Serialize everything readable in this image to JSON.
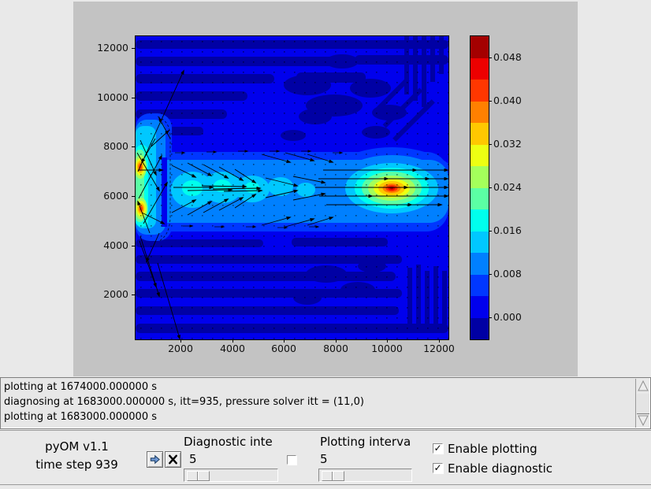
{
  "app": {
    "title": "pyOM v1.1",
    "time_step": "time step 939"
  },
  "log": {
    "lines": [
      "plotting at 1674000.000000 s",
      "diagnosing at 1683000.000000 s, itt=935, pressure solver itt = (11,0)",
      "plotting at 1683000.000000 s"
    ]
  },
  "controls": {
    "icons": {
      "run_button": "arrow-right-icon",
      "stop_button": "x-icon",
      "scroll_up": "triangle-up-icon",
      "scroll_down": "triangle-down-icon"
    },
    "diagnostic_interval": {
      "label": "Diagnostic inte",
      "value": "5"
    },
    "plotting_interval": {
      "label": "Plotting interva",
      "value": "5"
    },
    "unlabeled_checkbox": {
      "checked": false
    },
    "enable_plotting": {
      "label": "Enable plotting",
      "checked": true,
      "check_glyph": "✓"
    },
    "enable_diagnostic": {
      "label": "Enable diagnostic",
      "checked": true,
      "check_glyph": "✓"
    }
  },
  "chart_data": {
    "type": "heatmap",
    "title": "",
    "xlabel": "",
    "ylabel": "",
    "xticks": [
      "2000",
      "4000",
      "6000",
      "8000",
      "10000",
      "12000"
    ],
    "yticks": [
      "2000",
      "4000",
      "6000",
      "8000",
      "10000",
      "12000"
    ],
    "xlim": [
      330,
      12360
    ],
    "ylim": [
      220,
      12430
    ],
    "grid": false,
    "colorbar": {
      "tick_labels": [
        "0.048",
        "0.040",
        "0.032",
        "0.024",
        "0.016",
        "0.008",
        "0.000"
      ],
      "levels": [
        -0.004,
        0.0,
        0.004,
        0.008,
        0.012,
        0.016,
        0.02,
        0.024,
        0.028,
        0.032,
        0.036,
        0.04,
        0.044,
        0.048,
        0.052
      ],
      "colors": [
        "#0000A4",
        "#0000ED",
        "#0037FF",
        "#0080FF",
        "#00C8FF",
        "#00FFED",
        "#5BFFA4",
        "#A4FF5B",
        "#EDFF12",
        "#FFC800",
        "#FF8000",
        "#FF3700",
        "#ED0000",
        "#A40000"
      ],
      "legend_position": "right"
    },
    "features": {
      "field": "speed with quiver velocity arrows",
      "background_value_range": [
        0.0,
        0.004
      ],
      "jet_band": {
        "y_center": 6200,
        "x_range": [
          330,
          12360
        ],
        "value": 0.012
      },
      "hotspot_max": {
        "x": 10300,
        "y": 6250,
        "value": 0.05
      },
      "west_boundary_maxima": [
        {
          "x": 350,
          "y": 7100,
          "value": 0.046
        },
        {
          "x": 350,
          "y": 5650,
          "value": 0.044
        }
      ]
    }
  }
}
